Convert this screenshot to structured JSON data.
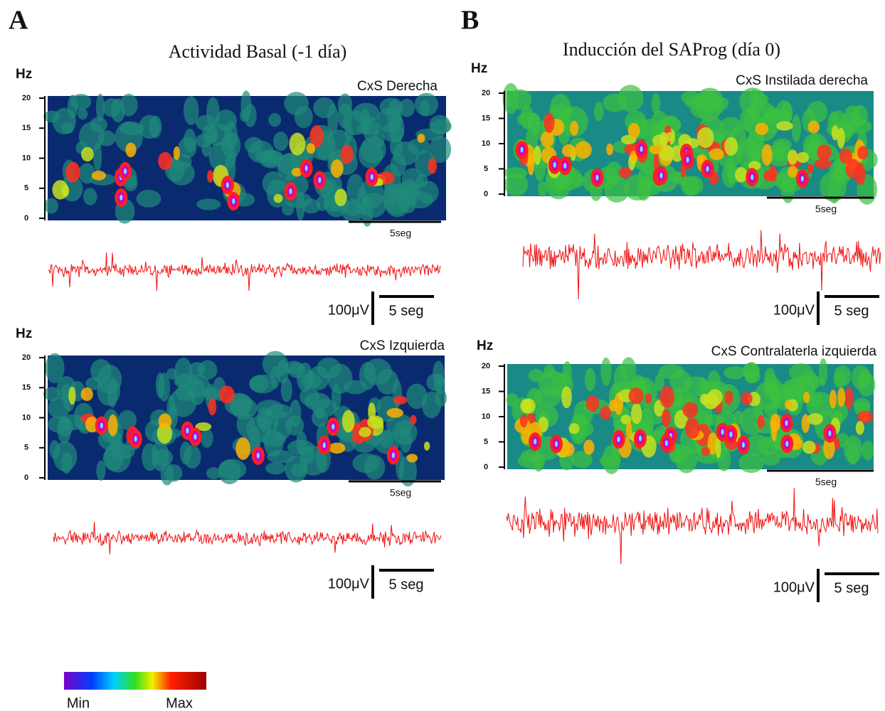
{
  "panels": [
    {
      "letter": "A",
      "title": "Actividad Basal (-1 día)",
      "plots": [
        {
          "unit": "Hz",
          "label": "CxS Derecha",
          "yticks": [
            0,
            5,
            10,
            15,
            20
          ],
          "spec_scale": "5seg",
          "amp_scale": "100μV",
          "trace_scale": "5 seg"
        },
        {
          "unit": "Hz",
          "label": "CxS Izquierda",
          "yticks": [
            0,
            5,
            10,
            15,
            20
          ],
          "spec_scale": "5seg",
          "amp_scale": "100μV",
          "trace_scale": "5 seg"
        }
      ]
    },
    {
      "letter": "B",
      "title": "Inducción del SAProg (día 0)",
      "plots": [
        {
          "unit": "Hz",
          "label": "CxS Instilada derecha",
          "yticks": [
            0,
            5,
            10,
            15,
            20
          ],
          "spec_scale": "5seg",
          "amp_scale": "100μV",
          "trace_scale": "5 seg"
        },
        {
          "unit": "Hz",
          "label": "CxS Contralaterla izquierda",
          "yticks": [
            0,
            5,
            10,
            15,
            20
          ],
          "spec_scale": "5seg",
          "amp_scale": "100μV",
          "trace_scale": "5 seg"
        }
      ]
    }
  ],
  "colorbar": {
    "min": "Min",
    "max": "Max"
  }
}
